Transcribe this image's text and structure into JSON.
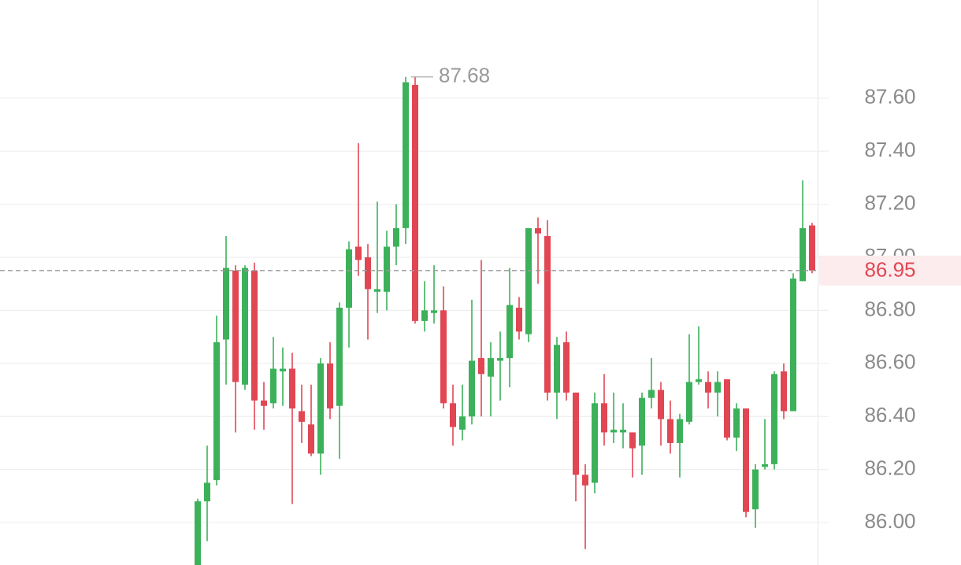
{
  "chart_data": {
    "type": "candlestick",
    "open": [
      85.84,
      86.08,
      86.16,
      86.69,
      86.95,
      86.52,
      86.95,
      86.46,
      86.45,
      86.57,
      86.58,
      86.42,
      86.37,
      86.26,
      86.6,
      86.44,
      86.81,
      87.04,
      87.0,
      86.87,
      86.87,
      87.04,
      87.11,
      87.65,
      86.76,
      86.79,
      86.8,
      86.45,
      86.35,
      86.4,
      86.62,
      86.55,
      86.61,
      86.62,
      86.81,
      86.71,
      87.11,
      87.08,
      86.49,
      86.68,
      86.49,
      86.18,
      86.15,
      86.45,
      86.34,
      86.34,
      86.34,
      86.29,
      86.47,
      86.5,
      86.39,
      86.3,
      86.38,
      86.53,
      86.53,
      86.49,
      86.54,
      86.32,
      86.43,
      86.05,
      86.21,
      86.22,
      86.57,
      86.42,
      86.91,
      87.12
    ],
    "high": [
      86.09,
      86.29,
      86.78,
      87.08,
      86.97,
      86.97,
      86.98,
      86.53,
      86.7,
      86.66,
      86.64,
      86.52,
      86.52,
      86.62,
      86.68,
      86.83,
      87.06,
      87.43,
      87.05,
      87.21,
      87.1,
      87.2,
      87.68,
      87.68,
      86.91,
      86.97,
      86.89,
      86.52,
      86.52,
      86.84,
      86.99,
      86.68,
      86.72,
      86.96,
      86.85,
      87.11,
      87.15,
      87.14,
      86.7,
      86.72,
      86.49,
      86.22,
      86.49,
      86.56,
      86.49,
      86.45,
      86.34,
      86.49,
      86.62,
      86.53,
      86.46,
      86.41,
      86.71,
      86.74,
      86.57,
      86.57,
      86.54,
      86.45,
      86.43,
      86.22,
      86.39,
      86.57,
      86.6,
      86.94,
      87.29,
      87.13
    ],
    "low": [
      85.84,
      85.93,
      86.14,
      86.52,
      86.34,
      86.5,
      86.35,
      86.35,
      86.43,
      86.44,
      86.07,
      86.3,
      86.25,
      86.18,
      86.39,
      86.24,
      86.66,
      86.93,
      86.69,
      86.79,
      86.8,
      86.97,
      87.05,
      86.75,
      86.72,
      86.75,
      86.43,
      86.29,
      86.31,
      86.37,
      86.4,
      86.4,
      86.46,
      86.51,
      86.69,
      86.68,
      86.9,
      86.46,
      86.39,
      86.46,
      86.08,
      85.9,
      86.11,
      86.29,
      86.3,
      86.28,
      86.17,
      86.18,
      86.43,
      86.29,
      86.26,
      86.17,
      86.37,
      86.52,
      86.43,
      86.4,
      86.31,
      86.27,
      86.02,
      85.98,
      86.2,
      86.2,
      86.39,
      86.42,
      86.91,
      86.94
    ],
    "close": [
      86.08,
      86.15,
      86.68,
      86.96,
      86.53,
      86.96,
      86.46,
      86.44,
      86.58,
      86.58,
      86.43,
      86.38,
      86.26,
      86.6,
      86.43,
      86.81,
      87.03,
      86.99,
      86.88,
      86.88,
      87.04,
      87.11,
      87.66,
      86.76,
      86.8,
      86.8,
      86.45,
      86.36,
      86.4,
      86.61,
      86.56,
      86.62,
      86.62,
      86.82,
      86.72,
      87.11,
      87.09,
      86.49,
      86.67,
      86.49,
      86.18,
      86.14,
      86.45,
      86.34,
      86.35,
      86.35,
      86.28,
      86.47,
      86.5,
      86.39,
      86.3,
      86.39,
      86.53,
      86.54,
      86.49,
      86.53,
      86.32,
      86.43,
      86.04,
      86.2,
      86.22,
      86.56,
      86.42,
      86.92,
      87.11,
      86.95
    ],
    "up_color": "#3cb15a",
    "down_color": "#e14653",
    "ylim": [
      85.84,
      87.97
    ],
    "yticks": [
      {
        "value": 86,
        "label": "86.00"
      },
      {
        "value": 86.2,
        "label": "86.20"
      },
      {
        "value": 86.4,
        "label": "86.40"
      },
      {
        "value": 86.6,
        "label": "86.60"
      },
      {
        "value": 86.8,
        "label": "86.80"
      },
      {
        "value": 87,
        "label": "87.00"
      },
      {
        "value": 87.2,
        "label": "87.20"
      },
      {
        "value": 87.4,
        "label": "87.40"
      },
      {
        "value": 87.6,
        "label": "87.60"
      }
    ],
    "grid": true,
    "last_price": 86.95,
    "max_price": 87.68
  }
}
